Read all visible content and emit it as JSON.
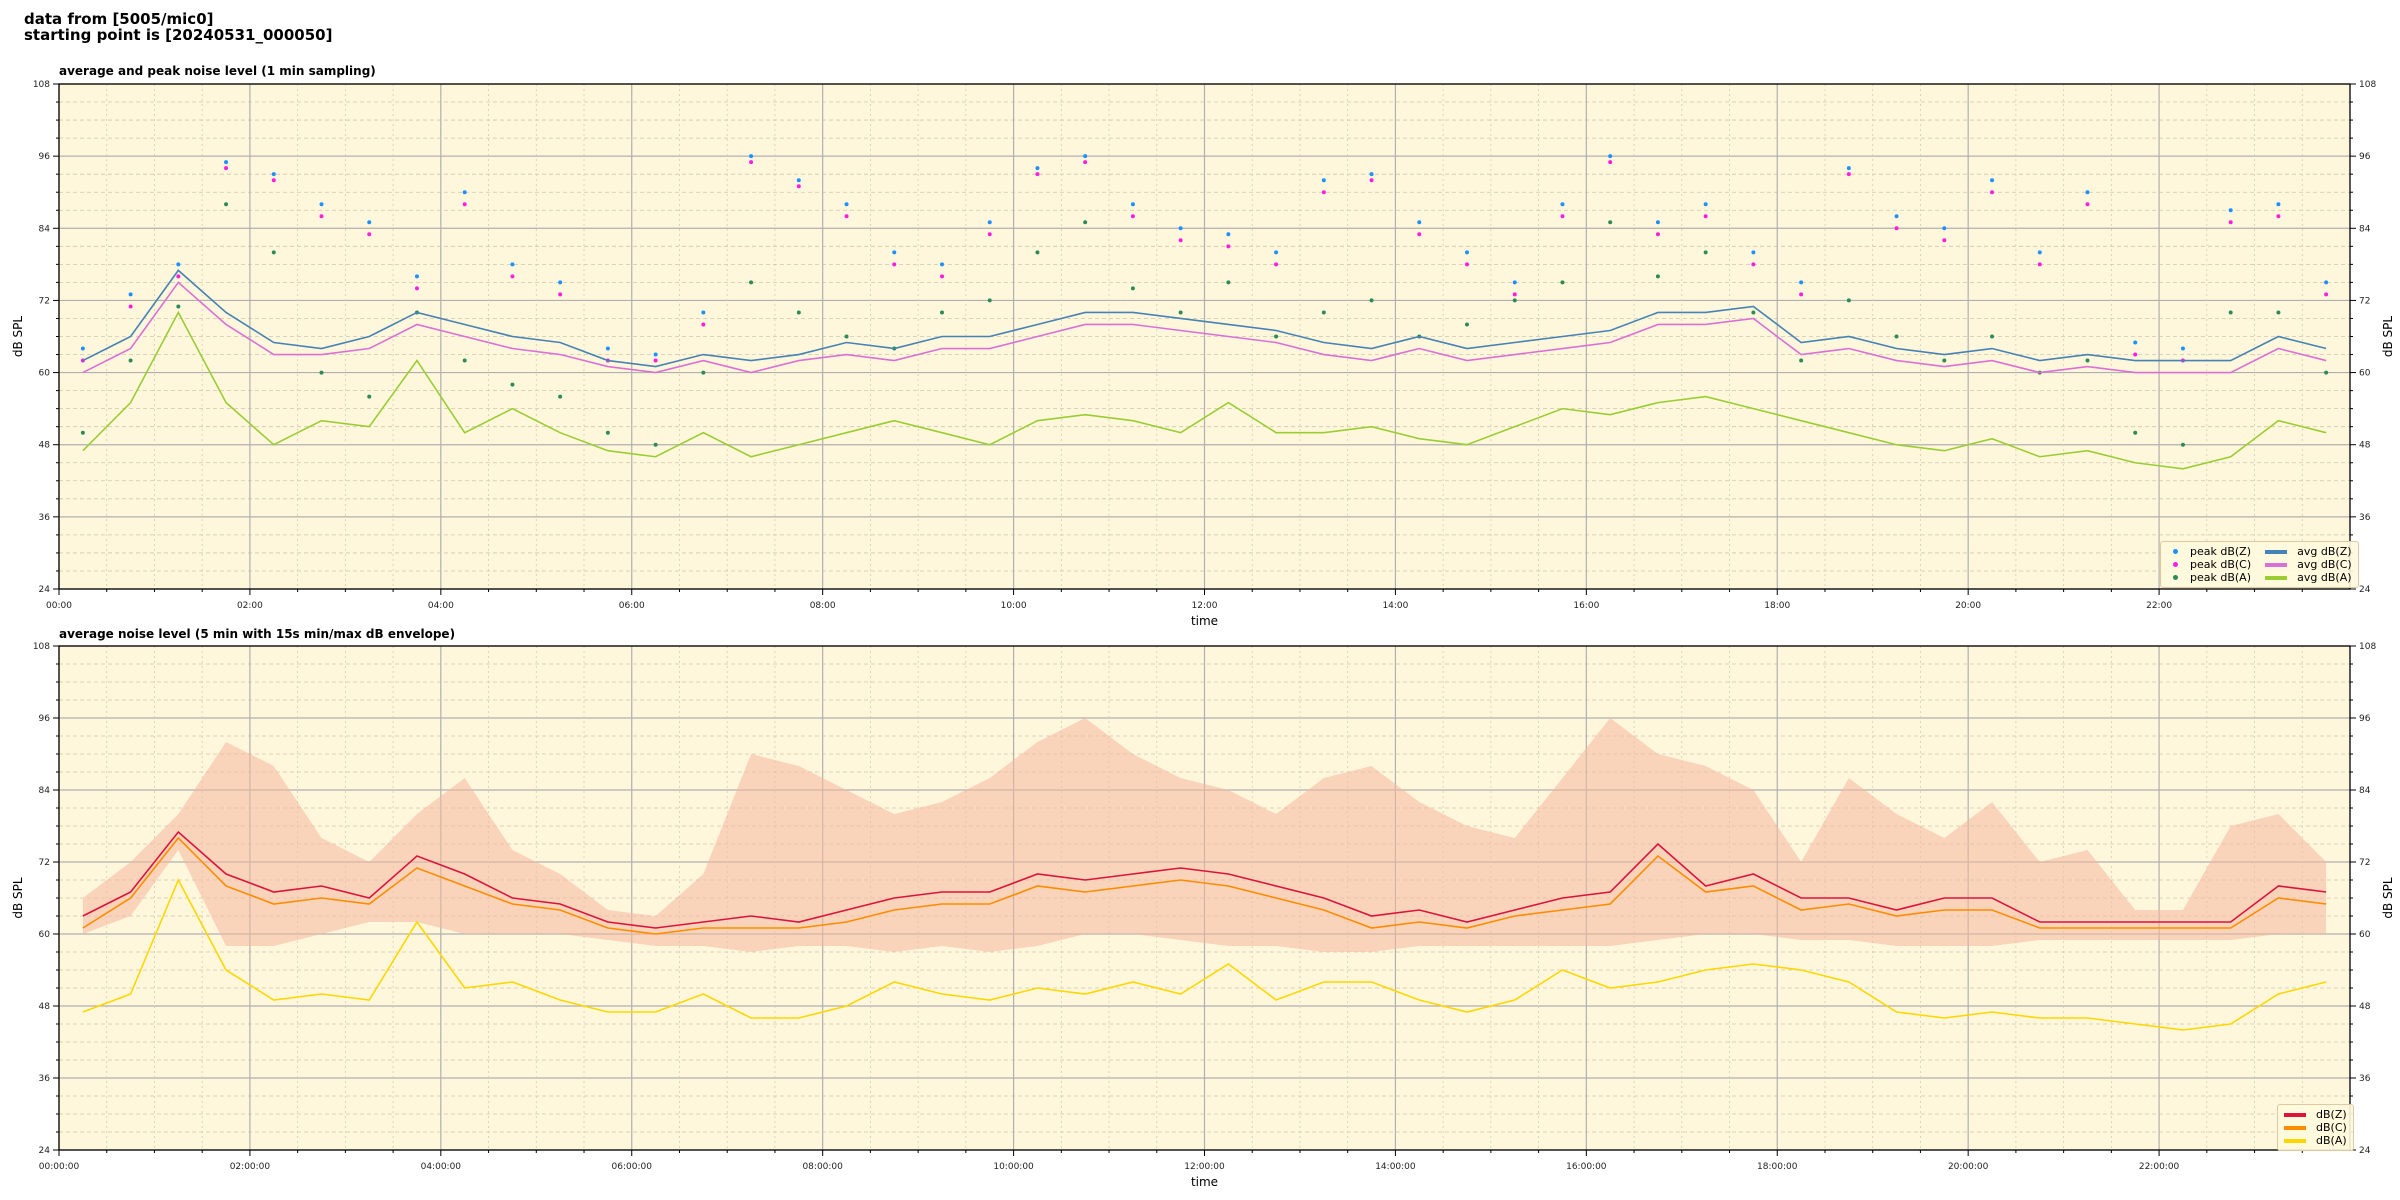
{
  "header": {
    "line1": "data from [5005/mic0]",
    "line2": "starting point is [20240531_000050]"
  },
  "colors": {
    "bg": "#fff7dc",
    "peakZ": "#1e90ff",
    "peakC": "#ff1ee0",
    "peakA": "#2e8b57",
    "avgZ": "#4682b4",
    "avgC": "#da70d6",
    "avgA": "#9acd32",
    "dZ": "#dc143c",
    "dC": "#ff8c00",
    "dA": "#ffd700",
    "env": "#f4b8a0"
  },
  "chart_data": [
    {
      "type": "line",
      "title": "average and peak noise level (1 min sampling)",
      "xlabel": "time",
      "ylabel": "dB SPL",
      "xlim": [
        0,
        24
      ],
      "ylim": [
        24,
        108
      ],
      "yticks": [
        24,
        36,
        48,
        60,
        72,
        84,
        96,
        108
      ],
      "xticks": [
        0,
        2,
        4,
        6,
        8,
        10,
        12,
        14,
        16,
        18,
        20,
        22
      ],
      "xticklabels": [
        "00:00",
        "02:00",
        "04:00",
        "06:00",
        "08:00",
        "10:00",
        "12:00",
        "14:00",
        "16:00",
        "18:00",
        "20:00",
        "22:00"
      ],
      "grid": true,
      "legend_position": "bottom-right",
      "x_step_hours": 0.5,
      "series": [
        {
          "name": "peak dB(Z)",
          "kind": "scatter",
          "color_key": "peakZ",
          "values": [
            64,
            73,
            78,
            95,
            93,
            88,
            85,
            76,
            90,
            78,
            75,
            64,
            63,
            70,
            96,
            92,
            88,
            80,
            78,
            85,
            94,
            96,
            88,
            84,
            83,
            80,
            92,
            93,
            85,
            80,
            75,
            88,
            96,
            85,
            88,
            80,
            75,
            94,
            86,
            84,
            92,
            80,
            90,
            65,
            64,
            87,
            88,
            75
          ]
        },
        {
          "name": "peak dB(C)",
          "kind": "scatter",
          "color_key": "peakC",
          "values": [
            62,
            71,
            76,
            94,
            92,
            86,
            83,
            74,
            88,
            76,
            73,
            62,
            62,
            68,
            95,
            91,
            86,
            78,
            76,
            83,
            93,
            95,
            86,
            82,
            81,
            78,
            90,
            92,
            83,
            78,
            73,
            86,
            95,
            83,
            86,
            78,
            73,
            93,
            84,
            82,
            90,
            78,
            88,
            63,
            62,
            85,
            86,
            73
          ]
        },
        {
          "name": "peak dB(A)",
          "kind": "scatter",
          "color_key": "peakA",
          "values": [
            50,
            62,
            71,
            88,
            80,
            60,
            56,
            70,
            62,
            58,
            56,
            50,
            48,
            60,
            75,
            70,
            66,
            64,
            70,
            72,
            80,
            85,
            74,
            70,
            75,
            66,
            70,
            72,
            66,
            68,
            72,
            75,
            85,
            76,
            80,
            70,
            62,
            72,
            66,
            62,
            66,
            60,
            62,
            50,
            48,
            70,
            70,
            60
          ]
        },
        {
          "name": "avg dB(Z)",
          "kind": "line",
          "color_key": "avgZ",
          "values": [
            62,
            66,
            77,
            70,
            65,
            64,
            66,
            70,
            68,
            66,
            65,
            62,
            61,
            63,
            62,
            63,
            65,
            64,
            66,
            66,
            68,
            70,
            70,
            69,
            68,
            67,
            65,
            64,
            66,
            64,
            65,
            66,
            67,
            70,
            70,
            71,
            65,
            66,
            64,
            63,
            64,
            62,
            63,
            62,
            62,
            62,
            66,
            64
          ]
        },
        {
          "name": "avg dB(C)",
          "kind": "line",
          "color_key": "avgC",
          "values": [
            60,
            64,
            75,
            68,
            63,
            63,
            64,
            68,
            66,
            64,
            63,
            61,
            60,
            62,
            60,
            62,
            63,
            62,
            64,
            64,
            66,
            68,
            68,
            67,
            66,
            65,
            63,
            62,
            64,
            62,
            63,
            64,
            65,
            68,
            68,
            69,
            63,
            64,
            62,
            61,
            62,
            60,
            61,
            60,
            60,
            60,
            64,
            62
          ]
        },
        {
          "name": "avg dB(A)",
          "kind": "line",
          "color_key": "avgA",
          "values": [
            47,
            55,
            70,
            55,
            48,
            52,
            51,
            62,
            50,
            54,
            50,
            47,
            46,
            50,
            46,
            48,
            50,
            52,
            50,
            48,
            52,
            53,
            52,
            50,
            55,
            50,
            50,
            51,
            49,
            48,
            51,
            54,
            53,
            55,
            56,
            54,
            52,
            50,
            48,
            47,
            49,
            46,
            47,
            45,
            44,
            46,
            52,
            50
          ]
        }
      ]
    },
    {
      "type": "line",
      "title": "average noise level (5 min with 15s min/max dB envelope)",
      "xlabel": "time",
      "ylabel": "dB SPL",
      "xlim": [
        0,
        24
      ],
      "ylim": [
        24,
        108
      ],
      "yticks": [
        24,
        36,
        48,
        60,
        72,
        84,
        96,
        108
      ],
      "xticks": [
        0,
        2,
        4,
        6,
        8,
        10,
        12,
        14,
        16,
        18,
        20,
        22
      ],
      "xticklabels": [
        "00:00:00",
        "02:00:00",
        "04:00:00",
        "06:00:00",
        "08:00:00",
        "10:00:00",
        "12:00:00",
        "14:00:00",
        "16:00:00",
        "18:00:00",
        "20:00:00",
        "22:00:00"
      ],
      "grid": true,
      "legend_position": "bottom-right",
      "x_step_hours": 0.5,
      "envelope": {
        "color_key": "env",
        "max": [
          66,
          72,
          80,
          92,
          88,
          76,
          72,
          80,
          86,
          74,
          70,
          64,
          63,
          70,
          90,
          88,
          84,
          80,
          82,
          86,
          92,
          96,
          90,
          86,
          84,
          80,
          86,
          88,
          82,
          78,
          76,
          86,
          96,
          90,
          88,
          84,
          72,
          86,
          80,
          76,
          82,
          72,
          74,
          64,
          64,
          78,
          80,
          72
        ],
        "min": [
          60,
          63,
          74,
          58,
          58,
          60,
          62,
          62,
          60,
          60,
          60,
          59,
          58,
          58,
          57,
          58,
          58,
          57,
          58,
          57,
          58,
          60,
          60,
          59,
          58,
          58,
          57,
          57,
          58,
          58,
          58,
          58,
          58,
          59,
          60,
          60,
          59,
          59,
          58,
          58,
          58,
          59,
          59,
          59,
          59,
          59,
          60,
          60
        ]
      },
      "series": [
        {
          "name": "dB(Z)",
          "kind": "line",
          "color_key": "dZ",
          "values": [
            63,
            67,
            77,
            70,
            67,
            68,
            66,
            73,
            70,
            66,
            65,
            62,
            61,
            62,
            63,
            62,
            64,
            66,
            67,
            67,
            70,
            69,
            70,
            71,
            70,
            68,
            66,
            63,
            64,
            62,
            64,
            66,
            67,
            75,
            68,
            70,
            66,
            66,
            64,
            66,
            66,
            62,
            62,
            62,
            62,
            62,
            68,
            67
          ]
        },
        {
          "name": "dB(C)",
          "kind": "line",
          "color_key": "dC",
          "values": [
            61,
            66,
            76,
            68,
            65,
            66,
            65,
            71,
            68,
            65,
            64,
            61,
            60,
            61,
            61,
            61,
            62,
            64,
            65,
            65,
            68,
            67,
            68,
            69,
            68,
            66,
            64,
            61,
            62,
            61,
            63,
            64,
            65,
            73,
            67,
            68,
            64,
            65,
            63,
            64,
            64,
            61,
            61,
            61,
            61,
            61,
            66,
            65
          ]
        },
        {
          "name": "dB(A)",
          "kind": "line",
          "color_key": "dA",
          "values": [
            47,
            50,
            69,
            54,
            49,
            50,
            49,
            62,
            51,
            52,
            49,
            47,
            47,
            50,
            46,
            46,
            48,
            52,
            50,
            49,
            51,
            50,
            52,
            50,
            55,
            49,
            52,
            52,
            49,
            47,
            49,
            54,
            51,
            52,
            54,
            55,
            54,
            52,
            47,
            46,
            47,
            46,
            46,
            45,
            44,
            45,
            50,
            52
          ]
        }
      ]
    }
  ]
}
